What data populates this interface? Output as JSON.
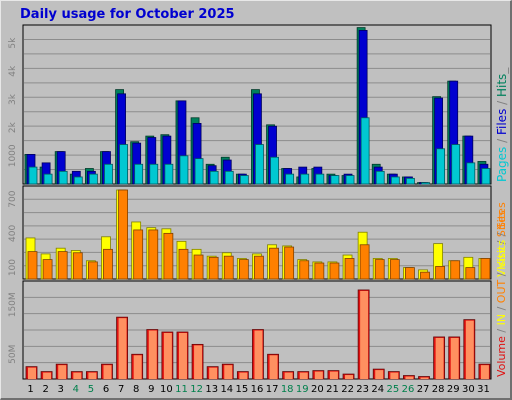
{
  "chart_data": {
    "type": "bar",
    "title": "Daily usage for October 2025",
    "categories": [
      "1",
      "2",
      "3",
      "4",
      "5",
      "6",
      "7",
      "8",
      "9",
      "10",
      "11",
      "12",
      "13",
      "14",
      "15",
      "16",
      "17",
      "18",
      "19",
      "20",
      "21",
      "22",
      "23",
      "24",
      "25",
      "26",
      "27",
      "28",
      "29",
      "30",
      "31"
    ],
    "weekend_days": [
      "4",
      "5",
      "11",
      "12",
      "18",
      "19",
      "25",
      "26"
    ],
    "panels": [
      {
        "name": "hits",
        "ylim": [
          0,
          5500
        ],
        "tick_labels": [
          "1000",
          "2k",
          "3k",
          "4k",
          "5k"
        ],
        "tick_values": [
          1000,
          2000,
          3000,
          4000,
          5000
        ],
        "legend": [
          {
            "text": "Pages",
            "color": "#00c8d2"
          },
          {
            "text": " / ",
            "color": "#808080"
          },
          {
            "text": "Files",
            "color": "#0000d0"
          },
          {
            "text": " / ",
            "color": "#808080"
          },
          {
            "text": "Hits",
            "color": "#00805c"
          },
          {
            "text": "_",
            "color": "#808080"
          }
        ],
        "series": [
          {
            "name": "Hits",
            "color": "#00805c",
            "values": [
              1050,
              600,
              1150,
              350,
              550,
              1150,
              3350,
              1500,
              1700,
              1750,
              2950,
              2350,
              700,
              950,
              350,
              3350,
              2100,
              550,
              250,
              550,
              350,
              300,
              5550,
              700,
              350,
              250,
              50,
              3100,
              3650,
              1700,
              800
            ]
          },
          {
            "name": "Files",
            "color": "#0000d0",
            "values": [
              1050,
              750,
              1150,
              450,
              450,
              1150,
              3200,
              1450,
              1650,
              1700,
              2950,
              2150,
              650,
              850,
              350,
              3200,
              2050,
              550,
              600,
              600,
              300,
              350,
              5450,
              600,
              350,
              250,
              50,
              3050,
              3650,
              1700,
              700
            ]
          },
          {
            "name": "Pages",
            "color": "#00c8d2",
            "values": [
              600,
              350,
              450,
              250,
              350,
              700,
              1400,
              700,
              700,
              700,
              1000,
              900,
              450,
              450,
              300,
              1400,
              950,
              350,
              350,
              350,
              300,
              300,
              2350,
              450,
              250,
              200,
              50,
              1250,
              1400,
              750,
              550
            ]
          }
        ]
      },
      {
        "name": "visits",
        "ylim": [
          0,
          780
        ],
        "tick_labels": [
          "100",
          "400",
          "700"
        ],
        "tick_values": [
          100,
          400,
          700
        ],
        "legend": [
          {
            "text": "Visits",
            "color": "#ffff00"
          },
          {
            "text": " / ",
            "color": "#808080"
          },
          {
            "text": "Sites",
            "color": "#ff8000"
          }
        ],
        "series": [
          {
            "name": "Visits",
            "color": "#ffff00",
            "values": [
              360,
              220,
              270,
              250,
              160,
              370,
              780,
              500,
              450,
              440,
              330,
              260,
              200,
              230,
              180,
              220,
              300,
              290,
              170,
              150,
              150,
              210,
              410,
              180,
              180,
              100,
              80,
              310,
              160,
              190,
              180
            ]
          },
          {
            "name": "Sites",
            "color": "#ff8000",
            "values": [
              240,
              170,
              240,
              230,
              150,
              260,
              780,
              430,
              430,
              400,
              260,
              210,
              190,
              200,
              170,
              200,
              270,
              280,
              160,
              140,
              140,
              180,
              300,
              170,
              170,
              100,
              60,
              110,
              160,
              100,
              180
            ]
          }
        ]
      },
      {
        "name": "volume",
        "ylim": [
          0,
          190
        ],
        "tick_labels": [
          "50M",
          "150M"
        ],
        "tick_values": [
          50,
          150
        ],
        "legend": [
          {
            "text": "Volume",
            "color": "#e01010"
          },
          {
            "text": " / ",
            "color": "#808080"
          },
          {
            "text": "IN",
            "color": "#ffff00"
          },
          {
            "text": " / ",
            "color": "#808080"
          },
          {
            "text": "OUT",
            "color": "#ff8000"
          },
          {
            "text": " / ",
            "color": "#808080"
          },
          {
            "text": "Visits",
            "color": "#ffff00"
          },
          {
            "text": " / ",
            "color": "#808080"
          },
          {
            "text": "Sites",
            "color": "#ff8000"
          }
        ],
        "series": [
          {
            "name": "Volume",
            "color": "#e01010",
            "values": [
              25,
              15,
              30,
              15,
              15,
              30,
              125,
              50,
              100,
              95,
              95,
              70,
              25,
              30,
              15,
              100,
              50,
              15,
              15,
              17,
              17,
              10,
              180,
              20,
              15,
              7,
              5,
              85,
              85,
              120,
              30
            ]
          }
        ]
      }
    ]
  }
}
